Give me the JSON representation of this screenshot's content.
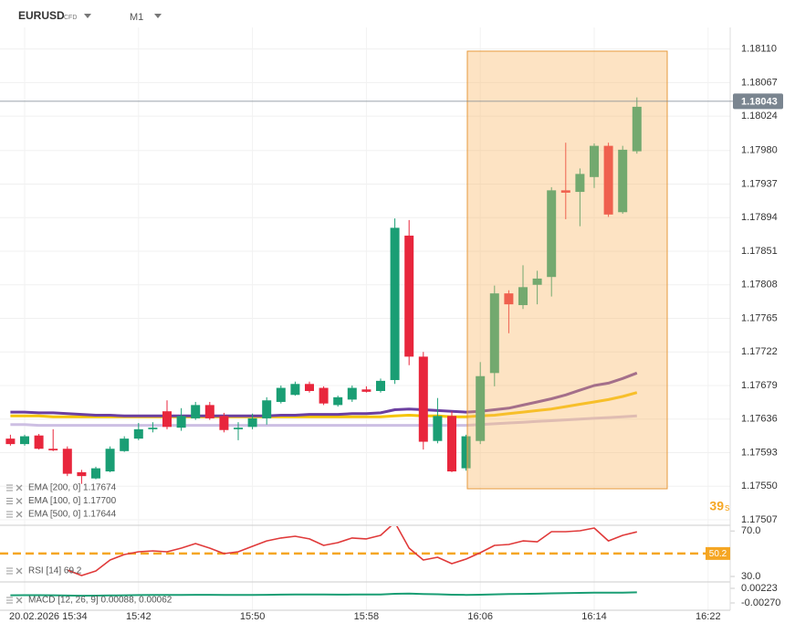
{
  "header": {
    "symbol": "EURUSD",
    "instrument_type": "CFD",
    "timeframe": "M1"
  },
  "chart_data": [
    {
      "type": "candlestick",
      "categories": [
        null,
        "20.02.2026 15:34",
        null,
        null,
        null,
        null,
        null,
        null,
        null,
        "15:42",
        null,
        null,
        null,
        null,
        null,
        null,
        null,
        "15:50",
        null,
        null,
        null,
        null,
        null,
        null,
        null,
        "15:58",
        null,
        null,
        null,
        null,
        null,
        null,
        null,
        "16:06",
        null,
        null,
        null,
        null,
        null,
        null,
        null,
        "16:14",
        null,
        null,
        null,
        null,
        null,
        null,
        null,
        "16:22"
      ],
      "open": [
        1.17611,
        1.17604,
        1.17615,
        1.17598,
        1.17598,
        1.17568,
        1.1756,
        1.17569,
        1.17595,
        1.17611,
        1.17623,
        1.17646,
        1.17625,
        1.17637,
        1.17654,
        1.1764,
        1.17623,
        1.17626,
        1.17637,
        1.17658,
        1.17667,
        1.17681,
        1.17676,
        1.17654,
        1.17661,
        1.17674,
        1.17672,
        1.17686,
        1.17871,
        1.17716,
        1.17608,
        1.1764,
        1.17573,
        1.17608,
        1.17695,
        1.17797,
        1.17782,
        1.17808,
        1.17818,
        1.17929,
        1.17927,
        1.17946,
        1.17986,
        1.17901,
        1.17979,
        null,
        null,
        null,
        null,
        null
      ],
      "high": [
        1.17616,
        1.17616,
        1.17617,
        1.17623,
        1.17601,
        1.17571,
        1.17575,
        1.17601,
        1.17614,
        1.17631,
        1.17632,
        1.1766,
        1.1765,
        1.17658,
        1.17658,
        1.17644,
        1.17632,
        1.17643,
        1.17664,
        1.17679,
        1.17684,
        1.17684,
        1.17678,
        1.17666,
        1.17679,
        1.17678,
        1.17688,
        1.17893,
        1.17891,
        1.17722,
        1.17663,
        1.17646,
        1.17616,
        1.17709,
        1.17807,
        1.17801,
        1.17833,
        1.17826,
        1.17933,
        1.1799,
        1.17957,
        1.17989,
        1.1799,
        1.17986,
        1.18048,
        null,
        null,
        null,
        null,
        null
      ],
      "low": [
        1.17602,
        1.17602,
        1.17597,
        1.17595,
        1.17563,
        1.17553,
        1.17559,
        1.17568,
        1.17594,
        1.17609,
        1.17619,
        1.17623,
        1.17621,
        1.17635,
        1.17635,
        1.17619,
        1.17609,
        1.17623,
        1.17629,
        1.17656,
        1.17666,
        1.1767,
        1.17654,
        1.17652,
        1.17658,
        1.1767,
        1.1767,
        1.17681,
        1.17705,
        1.17597,
        1.17605,
        1.17568,
        1.1757,
        1.17604,
        1.17678,
        1.17746,
        1.17777,
        1.17783,
        1.17793,
        1.17892,
        1.17883,
        1.17932,
        1.17895,
        1.17899,
        1.17976,
        null,
        null,
        null,
        null,
        null
      ],
      "close": [
        1.17604,
        1.17614,
        1.17598,
        1.17596,
        1.17566,
        1.17563,
        1.17573,
        1.17598,
        1.17611,
        1.17623,
        1.17625,
        1.17626,
        1.1764,
        1.17654,
        1.17637,
        1.17622,
        1.17625,
        1.17637,
        1.1766,
        1.17676,
        1.17681,
        1.17672,
        1.17656,
        1.17664,
        1.17676,
        1.17671,
        1.17685,
        1.17881,
        1.17716,
        1.17607,
        1.1764,
        1.17569,
        1.17614,
        1.17691,
        1.17797,
        1.17783,
        1.17805,
        1.17816,
        1.17929,
        1.17926,
        1.1795,
        1.17986,
        1.17898,
        1.17981,
        1.18036,
        null,
        null,
        null,
        null,
        null
      ],
      "up_color": "#1a9e74",
      "down_color": "#e8263c",
      "series": [
        {
          "name": "EMA [200, 0] 1.17674",
          "color": "#f5c400",
          "values": [
            1.1764,
            1.1764,
            1.1764,
            1.17639,
            1.17639,
            1.17639,
            1.17639,
            1.17639,
            1.17639,
            1.17639,
            1.17639,
            1.17639,
            1.17639,
            1.17639,
            1.17639,
            1.17639,
            1.17639,
            1.17639,
            1.17639,
            1.17639,
            1.17639,
            1.17639,
            1.17639,
            1.17639,
            1.17639,
            1.17639,
            1.17639,
            1.1764,
            1.17641,
            1.1764,
            1.1764,
            1.17639,
            1.17639,
            1.1764,
            1.17641,
            1.17643,
            1.17645,
            1.17647,
            1.17649,
            1.17652,
            1.17655,
            1.17658,
            1.17661,
            1.17665,
            1.1767,
            null,
            null,
            null,
            null,
            null
          ]
        },
        {
          "name": "EMA [100, 0] 1.17700",
          "color": "#6b3fa0",
          "values": [
            1.17645,
            1.17645,
            1.17644,
            1.17644,
            1.17643,
            1.17642,
            1.17641,
            1.17641,
            1.1764,
            1.1764,
            1.1764,
            1.1764,
            1.1764,
            1.1764,
            1.1764,
            1.1764,
            1.1764,
            1.1764,
            1.1764,
            1.17641,
            1.17641,
            1.17642,
            1.17642,
            1.17642,
            1.17643,
            1.17643,
            1.17644,
            1.17648,
            1.17649,
            1.17648,
            1.17647,
            1.17646,
            1.17645,
            1.17646,
            1.17648,
            1.1765,
            1.17654,
            1.17658,
            1.17662,
            1.17667,
            1.17673,
            1.17679,
            1.17682,
            1.17688,
            1.17695,
            null,
            null,
            null,
            null,
            null
          ]
        },
        {
          "name": "EMA [500, 0] 1.17644",
          "color": "#cdbfe3",
          "values": [
            1.17629,
            1.17629,
            1.17628,
            1.17628,
            1.17628,
            1.17628,
            1.17628,
            1.17628,
            1.17628,
            1.17628,
            1.17628,
            1.17628,
            1.17628,
            1.17628,
            1.17628,
            1.17628,
            1.17628,
            1.17628,
            1.17628,
            1.17628,
            1.17628,
            1.17628,
            1.17628,
            1.17628,
            1.17628,
            1.17628,
            1.17628,
            1.17628,
            1.17628,
            1.17628,
            1.17628,
            1.17628,
            1.17628,
            1.17629,
            1.1763,
            1.17631,
            1.17632,
            1.17633,
            1.17634,
            1.17635,
            1.17636,
            1.17637,
            1.17638,
            1.17639,
            1.1764,
            null,
            null,
            null,
            null,
            null
          ]
        }
      ],
      "ylim": [
        1.175,
        1.1814
      ],
      "yticks": [
        {
          "value": 1.1811,
          "label": "1.18110"
        },
        1.18067,
        1.18024,
        {
          "value": 1.1798,
          "label": "1.17980"
        },
        1.17937,
        1.17894,
        1.17851,
        1.17808,
        1.17765,
        1.17722,
        1.17679,
        1.17636,
        1.17593,
        {
          "value": 1.1755,
          "label": "1.17550"
        },
        1.17507
      ],
      "grid": true,
      "last_price": 1.18043,
      "countdown": "39",
      "countdown_unit": "s"
    },
    {
      "type": "line",
      "name": "RSI [14] 69.2",
      "color": "#e03a3a",
      "values": [
        null,
        null,
        null,
        null,
        35.6,
        30.8,
        34.8,
        44.5,
        49.3,
        51.7,
        52.5,
        51.7,
        54.9,
        58.9,
        54.9,
        50.1,
        51.7,
        56.5,
        61.3,
        63.8,
        65.4,
        63.0,
        57.3,
        59.7,
        63.8,
        63.0,
        66.2,
        77.5,
        54.9,
        44.5,
        46.9,
        41.3,
        45.3,
        50.9,
        57.3,
        58.1,
        61.3,
        60.5,
        69.4,
        69.4,
        70.2,
        72.6,
        61.3,
        66.2,
        69.2,
        null,
        null,
        null,
        null,
        null
      ],
      "ylim": [
        26,
        75
      ],
      "yticks": [
        {
          "value": 70,
          "label": "70.0"
        },
        {
          "value": 30,
          "label": "30.0"
        }
      ],
      "level": 50.2,
      "level_color": "#f5a623"
    },
    {
      "type": "line",
      "name": "MACD [12, 26, 9] 0.00088, 0.00062",
      "color": "#1a9e74",
      "values": [
        -0.0001,
        -8e-05,
        -9e-05,
        -0.00012,
        -0.0002,
        -0.00025,
        -0.00024,
        -0.00018,
        -0.00012,
        -6e-05,
        -2e-05,
        0,
        2e-05,
        5e-05,
        5e-05,
        2e-05,
        1e-05,
        2e-05,
        6e-05,
        0.00011,
        0.00015,
        0.00016,
        0.00013,
        0.00012,
        0.00014,
        0.00014,
        0.00017,
        0.0004,
        0.00045,
        0.0003,
        0.00022,
        8e-05,
        2e-05,
        8e-05,
        0.0002,
        0.00028,
        0.00036,
        0.00042,
        0.00055,
        0.00062,
        0.00068,
        0.00076,
        0.00074,
        0.00078,
        0.00088,
        null,
        null,
        null,
        null,
        null
      ],
      "ylim": [
        -0.00516,
        0.00439
      ],
      "yticks": [
        0.00223,
        {
          "value": -0.0027,
          "label": "-0.00270"
        }
      ]
    }
  ]
}
